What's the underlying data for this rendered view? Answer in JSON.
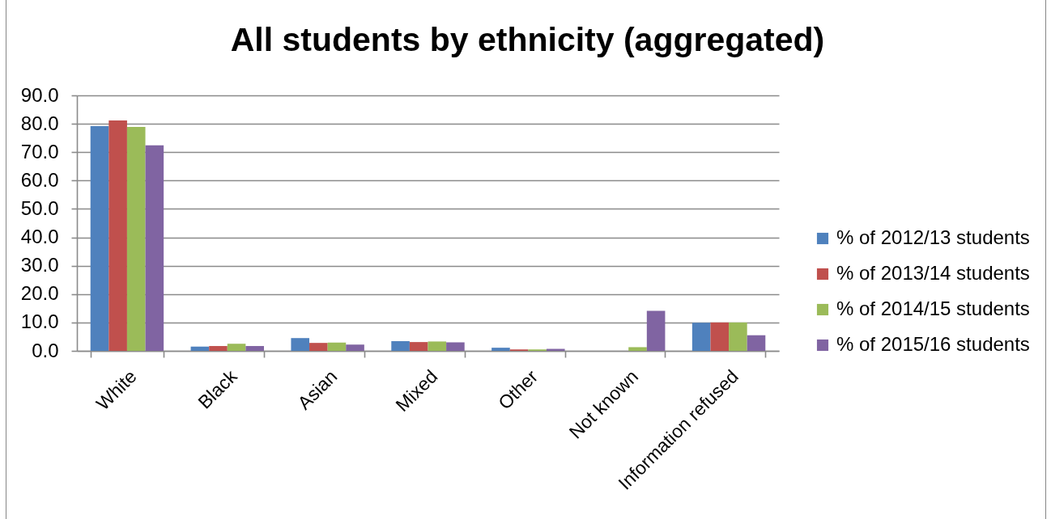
{
  "chart_data": {
    "type": "bar",
    "title": "All students by ethnicity (aggregated)",
    "categories": [
      "White",
      "Black",
      "Asian",
      "Mixed",
      "Other",
      "Not known",
      "Information refused"
    ],
    "series": [
      {
        "name": "% of 2012/13 students",
        "color": "#4f81bd",
        "values": [
          79.2,
          1.5,
          4.5,
          3.4,
          1.1,
          null,
          9.9
        ]
      },
      {
        "name": "% of 2013/14 students",
        "color": "#c0504d",
        "values": [
          81.2,
          1.7,
          2.8,
          3.1,
          0.5,
          null,
          10.0
        ]
      },
      {
        "name": "% of 2014/15 students",
        "color": "#9bbb59",
        "values": [
          78.9,
          2.5,
          2.9,
          3.3,
          0.5,
          1.3,
          10.0
        ]
      },
      {
        "name": "% of 2015/16 students",
        "color": "#8064a2",
        "values": [
          72.4,
          1.7,
          2.2,
          3.0,
          0.7,
          14.1,
          5.5
        ]
      }
    ],
    "ylim": [
      0,
      90
    ],
    "yticks": [
      {
        "value": 0,
        "label": "0.0"
      },
      {
        "value": 10,
        "label": "10.0"
      },
      {
        "value": 20,
        "label": "20.0"
      },
      {
        "value": 30,
        "label": "30.0"
      },
      {
        "value": 40,
        "label": "40.0"
      },
      {
        "value": 50,
        "label": "50.0"
      },
      {
        "value": 60,
        "label": "60.0"
      },
      {
        "value": 70,
        "label": "70.0"
      },
      {
        "value": 80,
        "label": "80.0"
      },
      {
        "value": 90,
        "label": "90.0"
      }
    ],
    "grid": "y",
    "legend": "right"
  }
}
